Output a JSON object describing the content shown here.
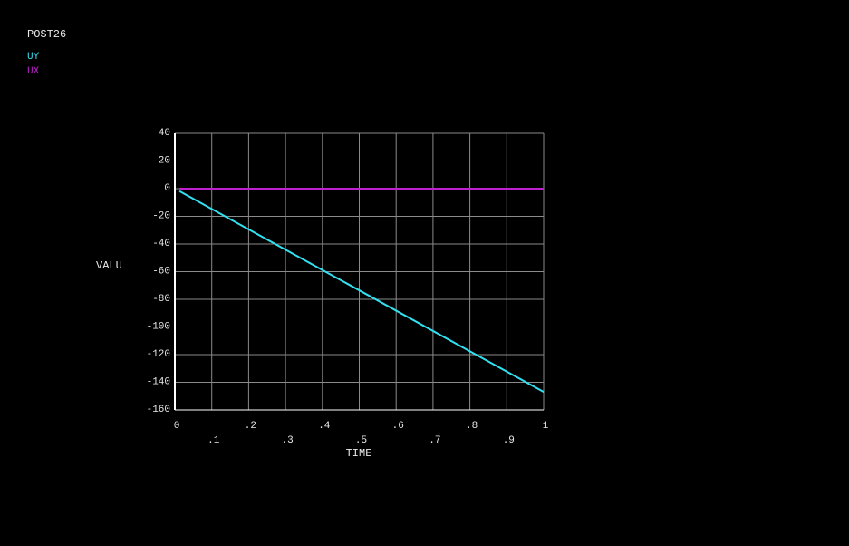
{
  "chart_data": {
    "type": "line",
    "title": "POST26",
    "x_label": "TIME",
    "y_label": "VALU",
    "x": [
      0.0125,
      1
    ],
    "series": [
      {
        "name": "UY",
        "color": "#33e0f0",
        "values": [
          -1.84,
          -147
        ]
      },
      {
        "name": "UX",
        "color": "#c020d0",
        "values": [
          0,
          0
        ]
      }
    ],
    "xlim": [
      0,
      1
    ],
    "xticks": [
      0,
      {
        "value": 0.1,
        "label": ".1"
      },
      {
        "value": 0.2,
        "label": ".2"
      },
      {
        "value": 0.3,
        "label": ".3"
      },
      {
        "value": 0.4,
        "label": ".4"
      },
      {
        "value": 0.5,
        "label": ".5"
      },
      {
        "value": 0.6,
        "label": ".6"
      },
      {
        "value": 0.7,
        "label": ".7"
      },
      {
        "value": 0.8,
        "label": ".8"
      },
      {
        "value": 0.9,
        "label": ".9"
      },
      1
    ],
    "ylim": [
      -160,
      40
    ],
    "yticks": [
      40,
      20,
      0,
      -20,
      -40,
      -60,
      -80,
      -100,
      -120,
      -140,
      -160
    ],
    "grid": true
  }
}
